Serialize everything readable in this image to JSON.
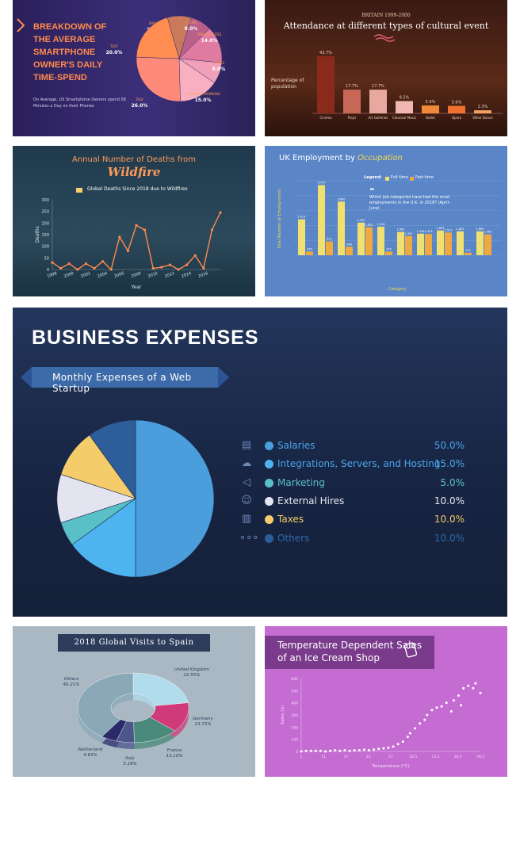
{
  "smartphone": {
    "title": "Breakdown of the Average Smartphone Owner's Daily Time-Spend",
    "subtitle": "On Average, US Smartphone Owners spend 58 Minutes a Day on their Phones",
    "chart_data": {
      "type": "pie",
      "labels": [
        "EMAIL",
        "Y TUBE",
        "WEB WEBSITES",
        "GAMES",
        "SOCIAL NETWORKING",
        "TALK",
        "TEXT"
      ],
      "values": [
        9.0,
        8.0,
        14.0,
        8.0,
        15.0,
        26.0,
        20.0
      ],
      "value_labels": [
        "9.0%",
        "8.0%",
        "14.0%",
        "8.0%",
        "15.0%",
        "26.0%",
        "20.0%"
      ],
      "colors": [
        "#c87a5a",
        "#b8608a",
        "#e07aa0",
        "#f0a0b8",
        "#f8b0c0",
        "#fe8a7a",
        "#ff8c50"
      ]
    }
  },
  "attendance": {
    "eyebrow": "BRITAIN 1999-2000",
    "title": "Attendance at different types of cultural event",
    "ylabel": "Percentage of population",
    "chart_data": {
      "type": "bar",
      "categories": [
        "Cinema",
        "Plays",
        "Art Galleries",
        "Classical Music",
        "Ballet",
        "Opera",
        "Other Dance"
      ],
      "values": [
        42.7,
        17.7,
        17.7,
        9.2,
        5.9,
        5.6,
        2.3
      ],
      "value_labels": [
        "42.7%",
        "17.7%",
        "17.7%",
        "9.2%",
        "5.9%",
        "5.6%",
        "2.3%"
      ],
      "colors": [
        "#8a2a1a",
        "#c86858",
        "#e8a8a0",
        "#f0b8b0",
        "#f08a3a",
        "#f07030",
        "#f0a060"
      ]
    }
  },
  "wildfire": {
    "title": "Annual Number of Deaths from",
    "title_emph": "Wildfire",
    "chart_data": {
      "type": "line",
      "series_label": "Global Deaths Since 2018 due to Wildfires",
      "x": [
        1998,
        1999,
        2000,
        2001,
        2002,
        2003,
        2004,
        2005,
        2006,
        2007,
        2008,
        2009,
        2010,
        2011,
        2012,
        2013,
        2014,
        2015,
        2016,
        2017,
        2018
      ],
      "y": [
        30,
        5,
        25,
        0,
        25,
        5,
        35,
        0,
        140,
        80,
        190,
        170,
        5,
        10,
        20,
        0,
        20,
        60,
        5,
        170,
        245
      ],
      "x_ticks": [
        "1998",
        "2000",
        "2002",
        "2004",
        "2006",
        "2008",
        "2010",
        "2012",
        "2014",
        "2016"
      ],
      "y_ticks": [
        "0",
        "50",
        "100",
        "150",
        "200",
        "250",
        "300"
      ],
      "xlabel": "Year",
      "ylabel": "Deaths",
      "ylim": [
        0,
        300
      ]
    }
  },
  "employment": {
    "title_plain": "UK Employment by",
    "title_emph": "Occupation",
    "legend_label": "Legend:",
    "note": "Which job categories have had the most employments in the U.K. in 2018? (April-June)",
    "chart_data": {
      "type": "bar",
      "xlabel": "Category",
      "ylabel": "Total Number of Employments",
      "series": [
        {
          "name": "Full-time",
          "values": [
            2413,
            4707,
            3600,
            2191,
            1914,
            1562,
            1449,
            1659,
            1603,
            1600
          ],
          "value_labels": [
            "2,413",
            "4,707",
            "3,600",
            "2,191",
            "1,914",
            "1,562",
            "1,449",
            "1,659",
            "1,603",
            "1,600"
          ]
        },
        {
          "name": "Part-time",
          "values": [
            250,
            927,
            568,
            1870,
            245,
            1287,
            1423,
            1523,
            171,
            1400
          ],
          "value_labels": [
            "250",
            "927",
            "568",
            "1,870",
            "245",
            "1,287",
            "1,423",
            "1,523",
            "171",
            "1,400"
          ]
        }
      ],
      "colors": [
        "#f0e070",
        "#f0a840"
      ]
    }
  },
  "expenses": {
    "title": "BUSINESS EXPENSES",
    "ribbon": "Monthly Expenses of a Web Startup",
    "chart_data": {
      "type": "pie",
      "labels": [
        "Salaries",
        "Integrations, Servers, and Hosting",
        "Marketing",
        "External Hires",
        "Taxes",
        "Others"
      ],
      "values": [
        50.0,
        15.0,
        5.0,
        10.0,
        10.0,
        10.0
      ],
      "value_labels": [
        "50.0%",
        "15.0%",
        "5.0%",
        "10.0%",
        "10.0%",
        "10.0%"
      ],
      "colors": [
        "#4a9edc",
        "#4eb4f0",
        "#5ac0c8",
        "#e4e4f0",
        "#f4cc6a",
        "#2e5e9a"
      ],
      "icons": [
        "money-icon",
        "cloud-icon",
        "megaphone-icon",
        "people-icon",
        "receipt-icon",
        "more-icon"
      ]
    }
  },
  "spain": {
    "title": "2018 Global Visits to Spain",
    "chart_data": {
      "type": "pie",
      "labels": [
        "United Kingdom",
        "Germany",
        "France",
        "Italy",
        "Netherland",
        "Others"
      ],
      "values": [
        22.55,
        13.73,
        13.1,
        5.18,
        4.63,
        40.21
      ],
      "value_labels": [
        "22.55%",
        "13.73%",
        "13.10%",
        "5.18%",
        "4.63%",
        "40.21%"
      ],
      "colors": [
        "#b0dcec",
        "#d03a7a",
        "#4a8a7a",
        "#4c568a",
        "#2a2a6a",
        "#8aa8b8"
      ]
    }
  },
  "icecream": {
    "title": "Temperature Dependent Sales of an Ice Cream Shop",
    "chart_data": {
      "type": "scatter",
      "xlabel": "Temperature (°C)",
      "ylabel": "Sales ($)",
      "x_ticks": [
        "5",
        "11",
        "17",
        "23",
        "27",
        "28.5",
        "33.5",
        "36.5",
        "39.5"
      ],
      "y_ticks": [
        "0",
        "100",
        "200",
        "300",
        "400",
        "500",
        "600"
      ],
      "ylim": [
        0,
        600
      ],
      "points": [
        [
          5,
          0
        ],
        [
          6,
          5
        ],
        [
          7,
          5
        ],
        [
          8,
          5
        ],
        [
          9,
          5
        ],
        [
          10,
          0
        ],
        [
          11,
          5
        ],
        [
          12,
          10
        ],
        [
          13,
          5
        ],
        [
          14,
          10
        ],
        [
          15,
          5
        ],
        [
          16,
          10
        ],
        [
          17,
          10
        ],
        [
          18,
          15
        ],
        [
          19,
          10
        ],
        [
          20,
          15
        ],
        [
          21,
          20
        ],
        [
          22,
          25
        ],
        [
          23,
          30
        ],
        [
          24,
          40
        ],
        [
          25,
          60
        ],
        [
          26,
          80
        ],
        [
          27,
          120
        ],
        [
          27.5,
          150
        ],
        [
          28.5,
          190
        ],
        [
          29.5,
          230
        ],
        [
          30.5,
          260
        ],
        [
          31,
          300
        ],
        [
          32,
          340
        ],
        [
          33,
          360
        ],
        [
          34,
          370
        ],
        [
          35,
          400
        ],
        [
          36,
          330
        ],
        [
          36.5,
          420
        ],
        [
          37.5,
          460
        ],
        [
          38.5,
          520
        ],
        [
          39.5,
          540
        ],
        [
          40.5,
          520
        ],
        [
          41,
          560
        ],
        [
          42,
          480
        ],
        [
          38,
          380
        ]
      ]
    }
  }
}
